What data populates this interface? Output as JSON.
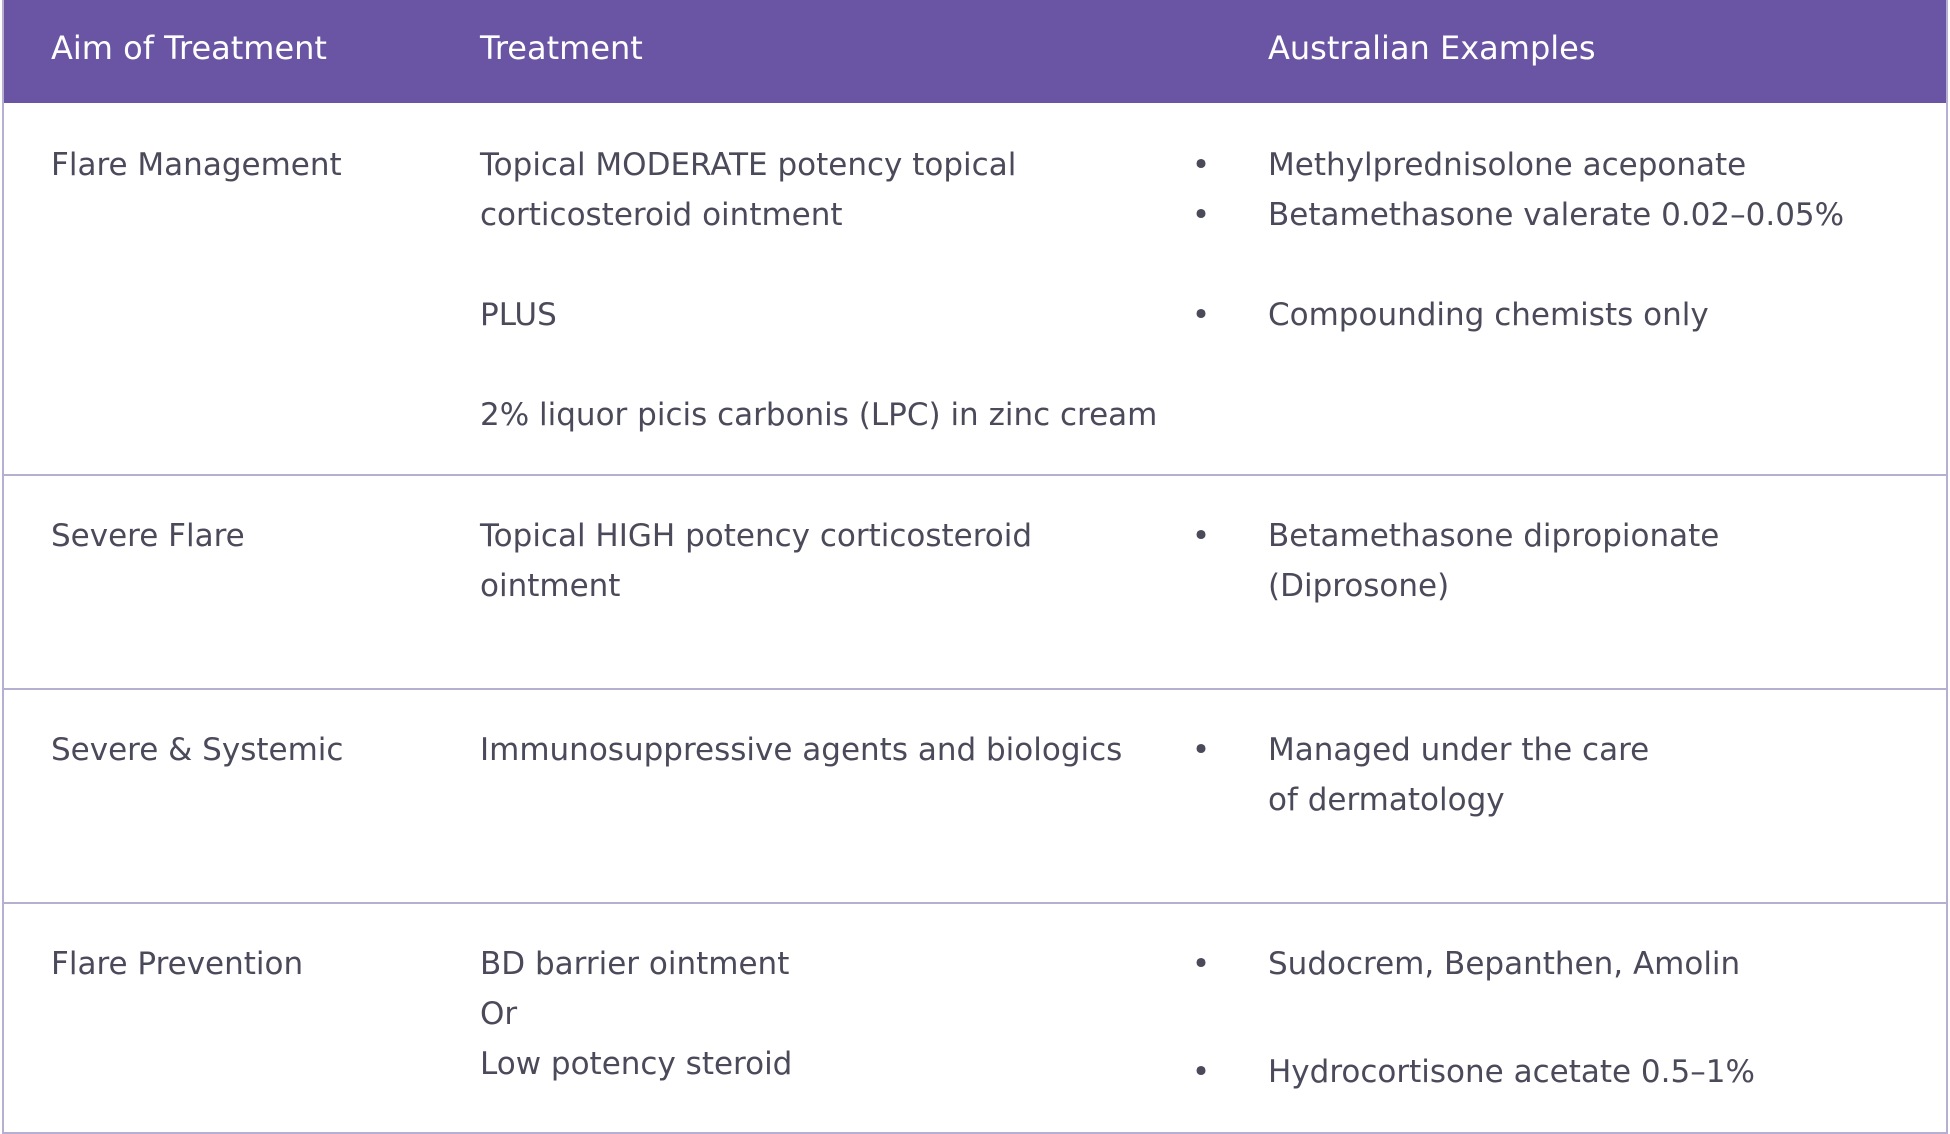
{
  "header": {
    "col1": "Aim of Treatment",
    "col2": "Treatment",
    "col3": "Australian Examples"
  },
  "rows": [
    {
      "aim": "Flare Management",
      "treatment": {
        "line1": "Topical MODERATE potency topical",
        "line2": "corticosteroid ointment",
        "line3": "PLUS",
        "line4": "2% liquor picis carbonis (LPC) in zinc cream"
      },
      "examples": [
        "Methylprednisolone aceponate",
        "Betamethasone valerate 0.02–0.05%",
        "Compounding chemists only"
      ]
    },
    {
      "aim": "Severe Flare",
      "treatment": {
        "line1": "Topical HIGH potency corticosteroid",
        "line2": "ointment"
      },
      "examples": [
        {
          "line1": "Betamethasone dipropionate",
          "line2": "(Diprosone)"
        }
      ]
    },
    {
      "aim": "Severe & Systemic",
      "treatment": {
        "line1": "Immunosuppressive agents and biologics"
      },
      "examples": [
        {
          "line1": "Managed under the care",
          "line2": "of dermatology"
        }
      ]
    },
    {
      "aim": "Flare Prevention",
      "treatment": {
        "line1": "BD barrier ointment",
        "line2": "Or",
        "line3": "Low potency steroid"
      },
      "examples": [
        "Sudocrem, Bepanthen, Amolin",
        "Hydrocortisone acetate 0.5–1%"
      ]
    }
  ],
  "bullet": "•",
  "colors": {
    "header_bg": "#6a55a4",
    "border": "#b7afd2",
    "text": "#4a4a5a"
  }
}
